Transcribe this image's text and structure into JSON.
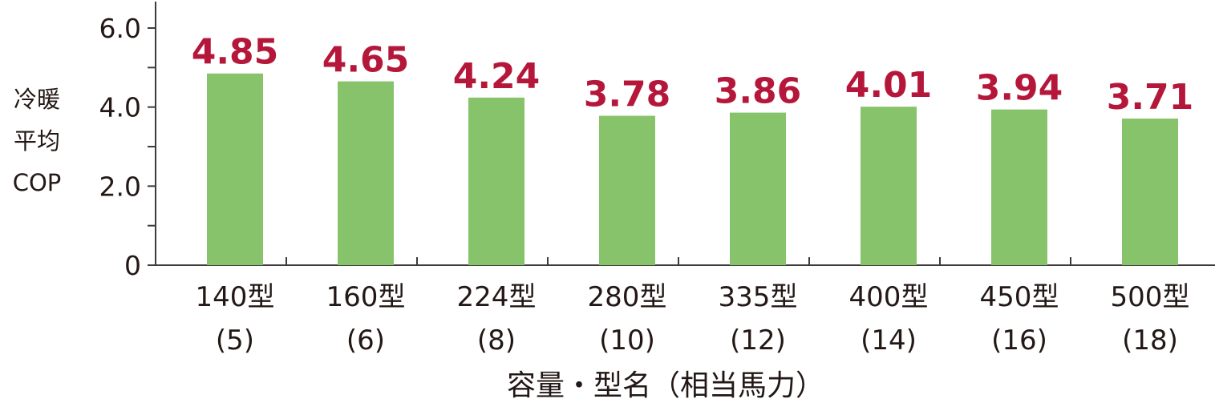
{
  "chart_data": {
    "type": "bar",
    "categories": [
      [
        "140型",
        "(5)"
      ],
      [
        "160型",
        "(6)"
      ],
      [
        "224型",
        "(8)"
      ],
      [
        "280型",
        "(10)"
      ],
      [
        "335型",
        "(12)"
      ],
      [
        "400型",
        "(14)"
      ],
      [
        "450型",
        "(16)"
      ],
      [
        "500型",
        "(18)"
      ]
    ],
    "values": [
      4.85,
      4.65,
      4.24,
      3.78,
      3.86,
      4.01,
      3.94,
      3.71
    ],
    "value_labels": [
      "4.85",
      "4.65",
      "4.24",
      "3.78",
      "3.86",
      "4.01",
      "3.94",
      "3.71"
    ],
    "ylim": [
      0,
      6.0
    ],
    "yticks": [
      {
        "value": 0,
        "label": "0"
      },
      {
        "value": 2,
        "label": "2.0"
      },
      {
        "value": 4,
        "label": "4.0"
      },
      {
        "value": 6,
        "label": "6.0"
      }
    ],
    "minor_yticks": [
      1,
      3,
      5
    ],
    "ylabel_lines": [
      "冷暖",
      "平均",
      "COP"
    ],
    "xlabel": "容量・型名（相当馬力）",
    "grid": false,
    "legend": "none",
    "colors": {
      "bar": "#86c36a",
      "value_label": "#b5173a",
      "axis": "#3e3a39",
      "text": "#231815"
    }
  }
}
